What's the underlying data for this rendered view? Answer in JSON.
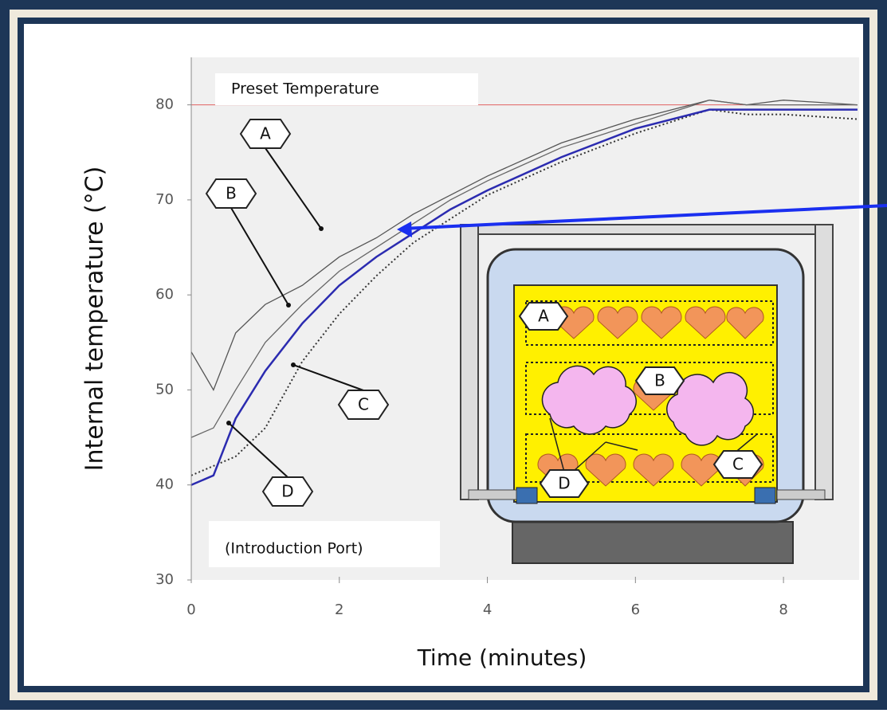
{
  "chart_data": {
    "type": "line",
    "x_label": "Time (minutes)",
    "y_label": "Internal temperature (°C)",
    "x": [
      0,
      0.3,
      0.6,
      1,
      1.5,
      2,
      2.5,
      3,
      3.5,
      4,
      5,
      6,
      7,
      7.5,
      8,
      9
    ],
    "series": [
      {
        "name": "A",
        "color": "#555555",
        "style": "solid",
        "values": [
          54,
          50,
          56,
          59,
          61,
          64,
          66,
          68.5,
          70.5,
          72.5,
          76,
          78.5,
          80.5,
          80,
          80.5,
          80
        ]
      },
      {
        "name": "B",
        "color": "#666666",
        "style": "solid",
        "values": [
          45,
          46,
          50,
          55,
          59,
          62.5,
          65,
          67.5,
          70,
          72,
          75.5,
          78,
          80.5,
          80,
          80,
          80
        ]
      },
      {
        "name": "C",
        "color": "#333333",
        "style": "dotted",
        "values": [
          41,
          42,
          43,
          46,
          53,
          58,
          62,
          65.5,
          68,
          70.5,
          74,
          77,
          79.5,
          79,
          79,
          78.5
        ]
      },
      {
        "name": "D",
        "color": "#2b2bb0",
        "style": "solid",
        "values": [
          40,
          41,
          47,
          52,
          57,
          61,
          64,
          66.5,
          69,
          71,
          74.5,
          77.5,
          79.5,
          79.5,
          79.5,
          79.5
        ]
      }
    ],
    "xlim": [
      0,
      9
    ],
    "xticks": [
      0,
      2,
      4,
      6,
      8
    ],
    "ylim": [
      30,
      85
    ],
    "yticks": [
      30,
      40,
      50,
      60,
      70,
      80
    ],
    "reference_line": {
      "value": 80,
      "label": "Preset Temperature",
      "color": "#e06060"
    },
    "annotation": "(Introduction Port)"
  }
}
